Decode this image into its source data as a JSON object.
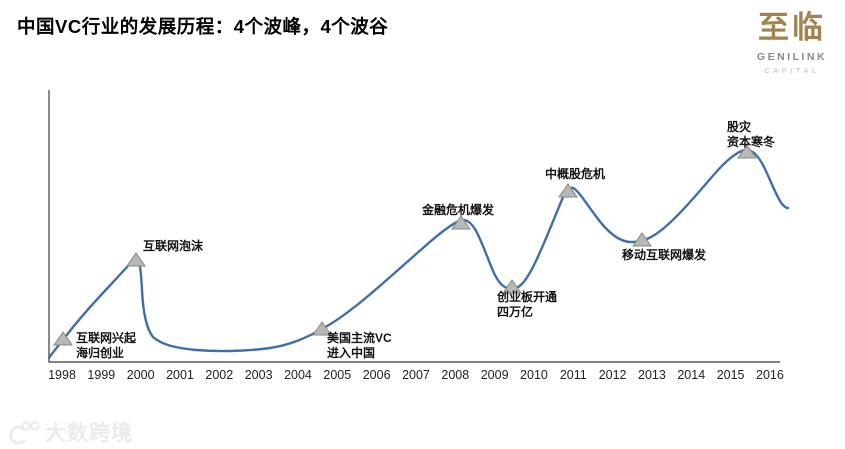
{
  "title": "中国VC行业的发展历程：4个波峰，4个波谷",
  "logo": {
    "hanzi": "至临",
    "name": "GENILINK",
    "sub": "CAPITAL"
  },
  "watermark": {
    "text": "大数跨境",
    "icon": "dashu-kuajing-logo-icon"
  },
  "chart_data": {
    "type": "line",
    "title": "中国VC行业的发展历程：4个波峰，4个波谷",
    "description": "Stylized qualitative wave curve of China's VC industry cycles from 1998 to 2016 with 4 peaks and 4 troughs; no y-axis values shown",
    "x_ticks": [
      "1998",
      "1999",
      "2000",
      "2001",
      "2002",
      "2003",
      "2004",
      "2005",
      "2006",
      "2007",
      "2008",
      "2009",
      "2010",
      "2011",
      "2012",
      "2013",
      "2014",
      "2015",
      "2016"
    ],
    "xlabel": "",
    "ylabel": "",
    "grid": false,
    "legend_position": "none",
    "line_color": "#3f6fa8",
    "marker_color": "#b8b8b8",
    "axis_color": "#595959",
    "events": [
      {
        "label": "互联网兴起\n海归创业",
        "year_approx": 1998,
        "phase": "start"
      },
      {
        "label": "互联网泡沫",
        "year_approx": 2000,
        "phase": "peak"
      },
      {
        "label": "美国主流VC\n进入中国",
        "year_approx": 2004.5,
        "phase": "trough"
      },
      {
        "label": "金融危机爆发",
        "year_approx": 2008,
        "phase": "peak"
      },
      {
        "label": "创业板开通\n四万亿",
        "year_approx": 2009.5,
        "phase": "trough"
      },
      {
        "label": "中概股危机",
        "year_approx": 2011,
        "phase": "peak"
      },
      {
        "label": "移动互联网爆发",
        "year_approx": 2012.5,
        "phase": "trough"
      },
      {
        "label": "股灾\n资本寒冬",
        "year_approx": 2015.5,
        "phase": "peak"
      }
    ]
  }
}
